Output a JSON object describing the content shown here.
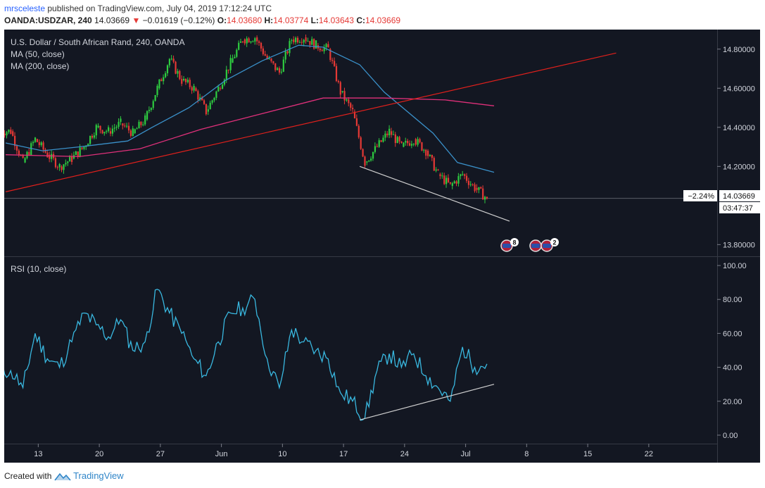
{
  "header": {
    "username": "mrsceleste",
    "published_text": "published on TradingView.com, July 04, 2019 17:12:24 UTC",
    "symbol": "OANDA:USDZAR, 240",
    "last": "14.03669",
    "arrow": "▼",
    "change": "−0.01619 (−0.12%)",
    "open_label": "O:",
    "open": "14.03680",
    "high_label": "H:",
    "high": "14.03774",
    "low_label": "L:",
    "low": "14.03643",
    "close_label": "C:",
    "close": "14.03669"
  },
  "legend": {
    "title": "U.S. Dollar / South African Rand, 240, OANDA",
    "ma50": "MA (50, close)",
    "ma200": "MA (200, close)",
    "rsi": "RSI (10, close)"
  },
  "price_badges": {
    "pct": "−2.24%",
    "price": "14.03669",
    "countdown": "03:47:37"
  },
  "events": [
    {
      "count": "8",
      "icon": "us-flag-icon"
    },
    {
      "count": "2",
      "icon": "us-flag-icon"
    }
  ],
  "footer": {
    "created_with": "Created with",
    "brand": "TradingView",
    "logo_icon": "tradingview-logo-icon"
  },
  "colors": {
    "background": "#131722",
    "up": "#2ecc40",
    "down": "#e53935",
    "ma50": "#3a90c9",
    "ma200": "#e0307a",
    "rsi": "#39b8e0",
    "trendline": "#e0201c",
    "support": "#d0d0d0"
  },
  "chart_data": [
    {
      "type": "candlestick",
      "title": "U.S. Dollar / South African Rand, 240, OANDA",
      "x_ticks": [
        "13",
        "20",
        "27",
        "Jun",
        "10",
        "17",
        "24",
        "Jul",
        "8",
        "15",
        "22"
      ],
      "y_ticks": [
        "14.80000",
        "14.60000",
        "14.40000",
        "14.20000",
        "13.80000"
      ],
      "ylim": [
        13.74,
        14.9
      ],
      "grid": false,
      "current_price": 14.03669,
      "close_path": [
        {
          "date": "2019-05-10",
          "close": 14.38
        },
        {
          "date": "2019-05-13",
          "close": 14.22
        },
        {
          "date": "2019-05-14",
          "close": 14.34
        },
        {
          "date": "2019-05-15",
          "close": 14.26
        },
        {
          "date": "2019-05-16",
          "close": 14.2
        },
        {
          "date": "2019-05-17",
          "close": 14.24
        },
        {
          "date": "2019-05-20",
          "close": 14.3
        },
        {
          "date": "2019-05-21",
          "close": 14.4
        },
        {
          "date": "2019-05-22",
          "close": 14.38
        },
        {
          "date": "2019-05-23",
          "close": 14.42
        },
        {
          "date": "2019-05-24",
          "close": 14.37
        },
        {
          "date": "2019-05-27",
          "close": 14.44
        },
        {
          "date": "2019-05-28",
          "close": 14.6
        },
        {
          "date": "2019-05-29",
          "close": 14.75
        },
        {
          "date": "2019-05-30",
          "close": 14.64
        },
        {
          "date": "2019-05-31",
          "close": 14.6
        },
        {
          "date": "2019-06-03",
          "close": 14.48
        },
        {
          "date": "2019-06-04",
          "close": 14.6
        },
        {
          "date": "2019-06-05",
          "close": 14.73
        },
        {
          "date": "2019-06-06",
          "close": 14.85
        },
        {
          "date": "2019-06-07",
          "close": 14.86
        },
        {
          "date": "2019-06-10",
          "close": 14.75
        },
        {
          "date": "2019-06-11",
          "close": 14.68
        },
        {
          "date": "2019-06-12",
          "close": 14.85
        },
        {
          "date": "2019-06-13",
          "close": 14.86
        },
        {
          "date": "2019-06-14",
          "close": 14.82
        },
        {
          "date": "2019-06-17",
          "close": 14.8
        },
        {
          "date": "2019-06-18",
          "close": 14.58
        },
        {
          "date": "2019-06-19",
          "close": 14.48
        },
        {
          "date": "2019-06-20",
          "close": 14.22
        },
        {
          "date": "2019-06-21",
          "close": 14.3
        },
        {
          "date": "2019-06-24",
          "close": 14.38
        },
        {
          "date": "2019-06-25",
          "close": 14.3
        },
        {
          "date": "2019-06-26",
          "close": 14.34
        },
        {
          "date": "2019-06-27",
          "close": 14.28
        },
        {
          "date": "2019-06-28",
          "close": 14.16
        },
        {
          "date": "2019-07-01",
          "close": 14.1
        },
        {
          "date": "2019-07-02",
          "close": 14.16
        },
        {
          "date": "2019-07-03",
          "close": 14.09
        },
        {
          "date": "2019-07-04",
          "close": 14.03669
        }
      ],
      "series": [
        {
          "name": "MA (50, close)",
          "points": [
            {
              "date": "2019-05-10",
              "v": 14.32
            },
            {
              "date": "2019-05-15",
              "v": 14.28
            },
            {
              "date": "2019-05-20",
              "v": 14.3
            },
            {
              "date": "2019-05-24",
              "v": 14.33
            },
            {
              "date": "2019-05-28",
              "v": 14.4
            },
            {
              "date": "2019-05-31",
              "v": 14.5
            },
            {
              "date": "2019-06-05",
              "v": 14.64
            },
            {
              "date": "2019-06-10",
              "v": 14.74
            },
            {
              "date": "2019-06-13",
              "v": 14.82
            },
            {
              "date": "2019-06-17",
              "v": 14.81
            },
            {
              "date": "2019-06-20",
              "v": 14.72
            },
            {
              "date": "2019-06-24",
              "v": 14.58
            },
            {
              "date": "2019-06-28",
              "v": 14.37
            },
            {
              "date": "2019-07-02",
              "v": 14.22
            },
            {
              "date": "2019-07-05",
              "v": 14.17
            }
          ]
        },
        {
          "name": "MA (200, close)",
          "points": [
            {
              "date": "2019-05-10",
              "v": 14.26
            },
            {
              "date": "2019-05-20",
              "v": 14.25
            },
            {
              "date": "2019-05-27",
              "v": 14.29
            },
            {
              "date": "2019-06-03",
              "v": 14.39
            },
            {
              "date": "2019-06-10",
              "v": 14.47
            },
            {
              "date": "2019-06-17",
              "v": 14.55
            },
            {
              "date": "2019-06-24",
              "v": 14.55
            },
            {
              "date": "2019-07-01",
              "v": 14.54
            },
            {
              "date": "2019-07-05",
              "v": 14.51
            }
          ]
        }
      ],
      "annotations": [
        {
          "name": "rising trendline",
          "from": {
            "date": "2019-05-10",
            "v": 14.07
          },
          "to": {
            "date": "2019-07-19",
            "v": 14.78
          }
        },
        {
          "name": "falling support line",
          "from": {
            "date": "2019-06-20",
            "v": 14.2
          },
          "to": {
            "date": "2019-07-05",
            "v": 13.92
          }
        }
      ]
    },
    {
      "type": "line",
      "title": "RSI (10, close)",
      "y_ticks": [
        "100.00",
        "80.00",
        "60.00",
        "40.00",
        "20.00",
        "0.00"
      ],
      "ylim": [
        -5,
        105
      ],
      "series": [
        {
          "name": "RSI (10, close)",
          "points": [
            {
              "date": "2019-05-10",
              "v": 38
            },
            {
              "date": "2019-05-13",
              "v": 28
            },
            {
              "date": "2019-05-14",
              "v": 60
            },
            {
              "date": "2019-05-15",
              "v": 45
            },
            {
              "date": "2019-05-16",
              "v": 40
            },
            {
              "date": "2019-05-17",
              "v": 55
            },
            {
              "date": "2019-05-20",
              "v": 72
            },
            {
              "date": "2019-05-21",
              "v": 65
            },
            {
              "date": "2019-05-22",
              "v": 58
            },
            {
              "date": "2019-05-23",
              "v": 68
            },
            {
              "date": "2019-05-24",
              "v": 50
            },
            {
              "date": "2019-05-27",
              "v": 55
            },
            {
              "date": "2019-05-28",
              "v": 86
            },
            {
              "date": "2019-05-29",
              "v": 72
            },
            {
              "date": "2019-05-30",
              "v": 60
            },
            {
              "date": "2019-05-31",
              "v": 45
            },
            {
              "date": "2019-06-03",
              "v": 35
            },
            {
              "date": "2019-06-04",
              "v": 55
            },
            {
              "date": "2019-06-05",
              "v": 72
            },
            {
              "date": "2019-06-06",
              "v": 75
            },
            {
              "date": "2019-06-07",
              "v": 80
            },
            {
              "date": "2019-06-10",
              "v": 45
            },
            {
              "date": "2019-06-11",
              "v": 28
            },
            {
              "date": "2019-06-12",
              "v": 62
            },
            {
              "date": "2019-06-13",
              "v": 55
            },
            {
              "date": "2019-06-14",
              "v": 50
            },
            {
              "date": "2019-06-17",
              "v": 45
            },
            {
              "date": "2019-06-18",
              "v": 25
            },
            {
              "date": "2019-06-19",
              "v": 20
            },
            {
              "date": "2019-06-20",
              "v": 10
            },
            {
              "date": "2019-06-21",
              "v": 38
            },
            {
              "date": "2019-06-24",
              "v": 48
            },
            {
              "date": "2019-06-25",
              "v": 40
            },
            {
              "date": "2019-06-26",
              "v": 48
            },
            {
              "date": "2019-06-27",
              "v": 35
            },
            {
              "date": "2019-06-28",
              "v": 28
            },
            {
              "date": "2019-07-01",
              "v": 20
            },
            {
              "date": "2019-07-02",
              "v": 52
            },
            {
              "date": "2019-07-03",
              "v": 40
            },
            {
              "date": "2019-07-04",
              "v": 42
            }
          ]
        }
      ],
      "annotations": [
        {
          "name": "rising RSI support line",
          "from": {
            "date": "2019-06-20",
            "v": 9
          },
          "to": {
            "date": "2019-07-07",
            "v": 30
          }
        }
      ]
    }
  ]
}
